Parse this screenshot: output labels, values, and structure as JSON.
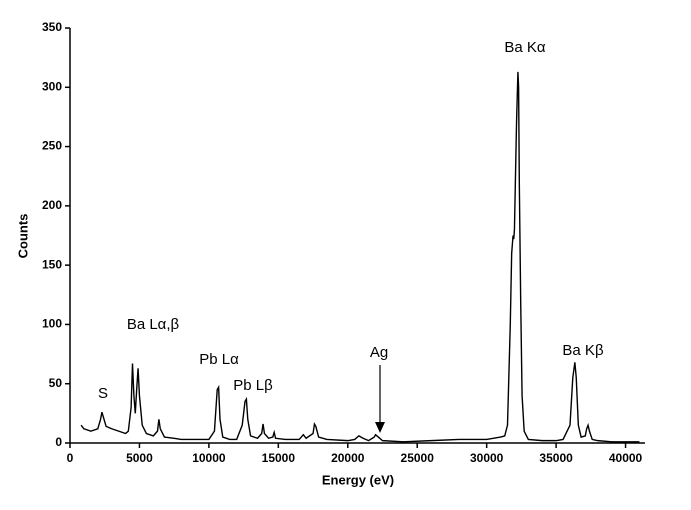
{
  "chart_data": {
    "type": "line",
    "x_label": "Energy (eV)",
    "y_label": "Counts",
    "color": "#000000",
    "xlim": [
      0,
      41400
    ],
    "ylim": [
      0,
      350
    ],
    "xticks": [
      0,
      5000,
      10000,
      15000,
      20000,
      25000,
      30000,
      35000,
      40000
    ],
    "yticks": [
      0,
      50,
      100,
      150,
      200,
      250,
      300,
      350
    ],
    "annotations": [
      "S",
      "Ba Lα,β",
      "Pb Lα",
      "Pb Lβ",
      "Ag",
      "Ba Kα",
      "Ba Kβ"
    ],
    "x": [
      800,
      1000,
      1500,
      2000,
      2200,
      2300,
      2400,
      2600,
      3000,
      3500,
      4000,
      4200,
      4400,
      4500,
      4600,
      4700,
      4800,
      4900,
      5000,
      5200,
      5500,
      6000,
      6300,
      6400,
      6500,
      6800,
      7500,
      8000,
      9000,
      10000,
      10400,
      10600,
      10700,
      10800,
      11000,
      11500,
      12000,
      12400,
      12600,
      12700,
      12800,
      13000,
      13500,
      13800,
      13900,
      14000,
      14300,
      14600,
      14700,
      14800,
      15500,
      16500,
      16800,
      17000,
      17500,
      17600,
      17700,
      17900,
      18500,
      20000,
      20500,
      20800,
      21100,
      21500,
      21900,
      22000,
      22200,
      22500,
      24000,
      26000,
      28000,
      29000,
      30000,
      31000,
      31300,
      31500,
      31700,
      31800,
      31900,
      31950,
      32000,
      32100,
      32150,
      32250,
      32300,
      32350,
      32450,
      32550,
      32700,
      33000,
      34000,
      35000,
      35500,
      36000,
      36200,
      36350,
      36450,
      36600,
      36800,
      37100,
      37200,
      37300,
      37400,
      37600,
      38000,
      39000,
      40000,
      41000
    ],
    "values": [
      15,
      12,
      10,
      12,
      20,
      26,
      22,
      14,
      12,
      10,
      8,
      10,
      30,
      67,
      40,
      25,
      45,
      63,
      40,
      15,
      8,
      6,
      10,
      20,
      12,
      5,
      4,
      3,
      3,
      3,
      10,
      45,
      47,
      20,
      5,
      3,
      3,
      15,
      35,
      37,
      20,
      6,
      4,
      8,
      16,
      8,
      4,
      5,
      9,
      4,
      3,
      3,
      7,
      4,
      8,
      16,
      14,
      5,
      3,
      2,
      3,
      6,
      4,
      2,
      5,
      7,
      5,
      2,
      1,
      2,
      3,
      3,
      3,
      5,
      6,
      15,
      100,
      160,
      175,
      172,
      180,
      240,
      270,
      313,
      300,
      220,
      120,
      40,
      10,
      3,
      2,
      2,
      3,
      15,
      55,
      68,
      55,
      15,
      5,
      6,
      12,
      15,
      10,
      3,
      2,
      1,
      1,
      1
    ]
  }
}
